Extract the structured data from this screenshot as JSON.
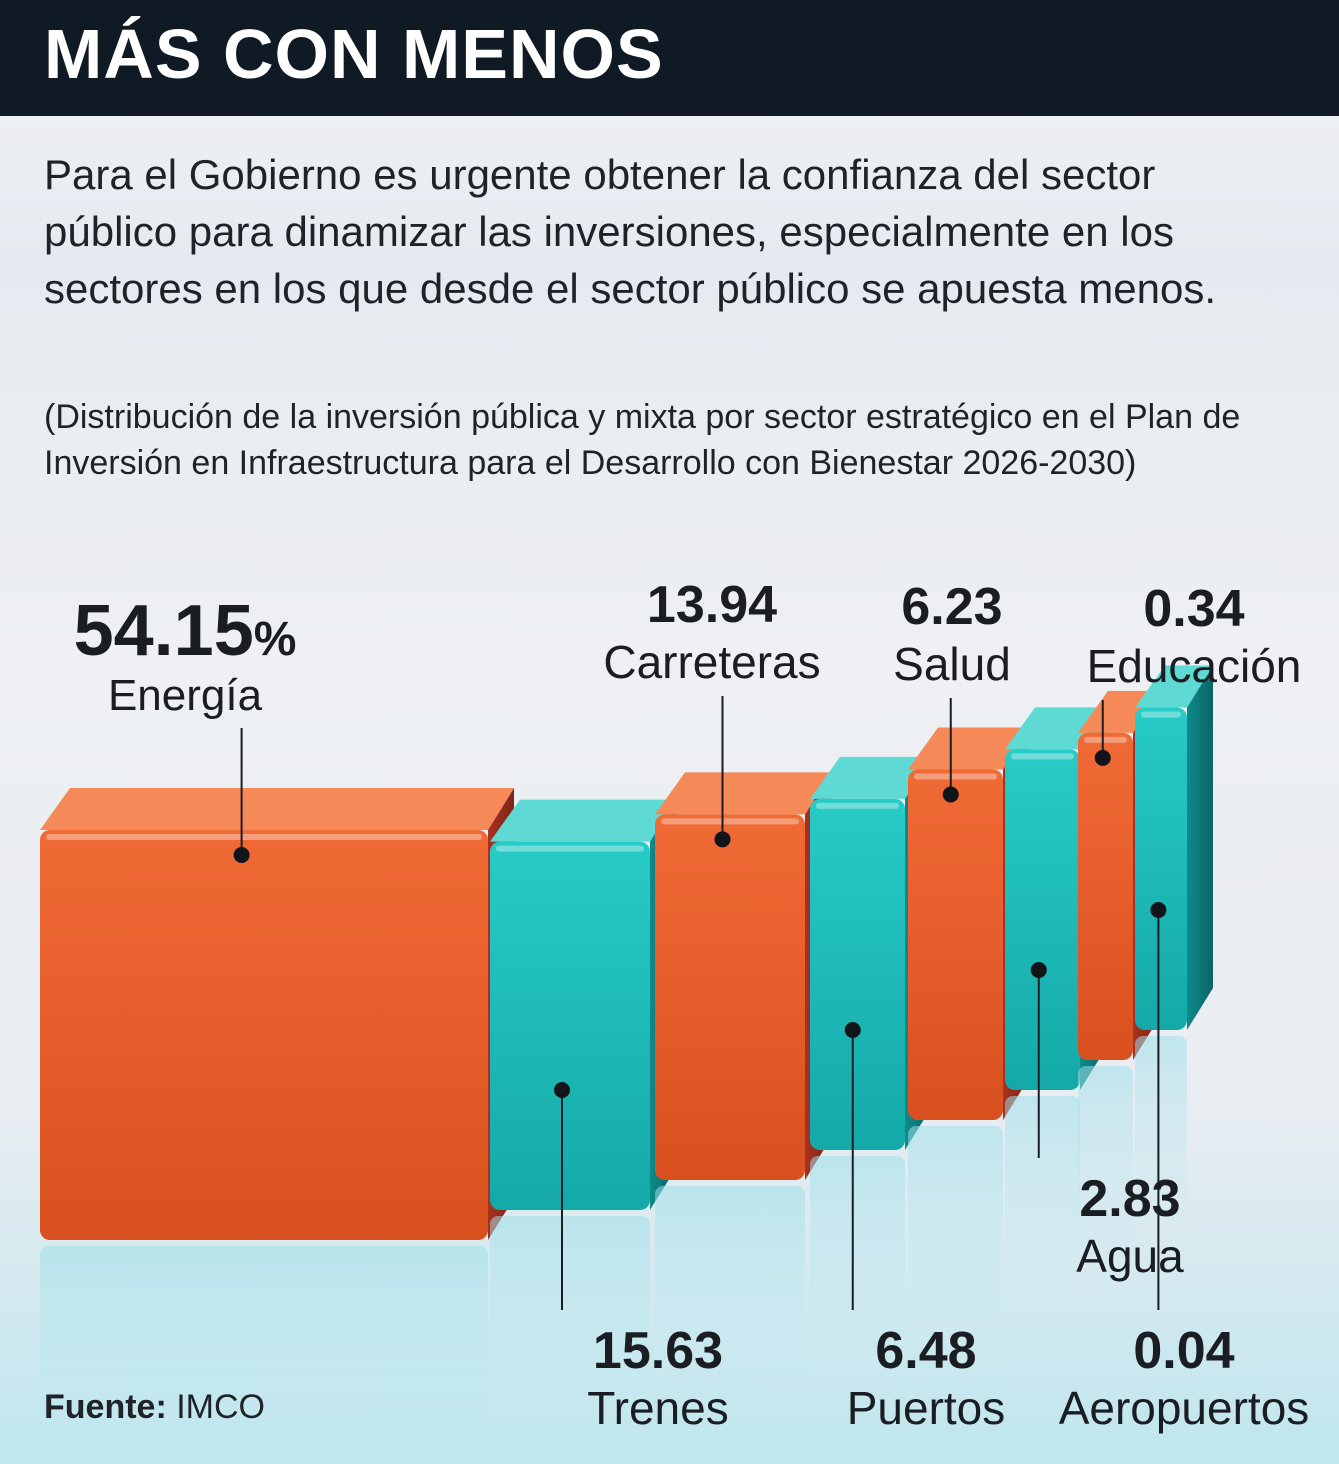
{
  "header": {
    "title": "MÁS CON MENOS"
  },
  "lede": "Para el Gobierno es urgente obtener la confianza del sector público para dinamizar las inversiones, especialmente en los sectores en los que desde el sector público se apuesta menos.",
  "subtitle": "(Distribución de la inversión pública y mixta por sector estratégico en el Plan de Inversión en Infraestructura para el Desarrollo con Bienestar 2026-2030)",
  "source": {
    "key": "Fuente:",
    "value": "IMCO"
  },
  "colors": {
    "orange": "#e45a2b",
    "orange_dark": "#8e2a1b",
    "teal": "#17b8b6",
    "teal_dark": "#0b6f72",
    "header_bg": "#0f1a24"
  },
  "chart_data": {
    "type": "bar",
    "title": "MÁS CON MENOS",
    "unit": "%",
    "categories": [
      "Energía",
      "Trenes",
      "Carreteras",
      "Puertos",
      "Salud",
      "Agua",
      "Educación",
      "Aeropuertos"
    ],
    "values": [
      54.15,
      15.63,
      13.94,
      6.48,
      6.23,
      2.83,
      0.34,
      0.04
    ],
    "value_labels": [
      "54.15",
      "15.63",
      "13.94",
      "6.48",
      "6.23",
      "2.83",
      "0.34",
      "0.04"
    ],
    "percent_sign": "%",
    "label_position": [
      "top",
      "bottom",
      "top",
      "bottom",
      "top",
      "bottom",
      "top",
      "bottom"
    ],
    "series_colors": [
      "orange",
      "teal",
      "orange",
      "teal",
      "orange",
      "teal",
      "orange",
      "teal"
    ]
  }
}
